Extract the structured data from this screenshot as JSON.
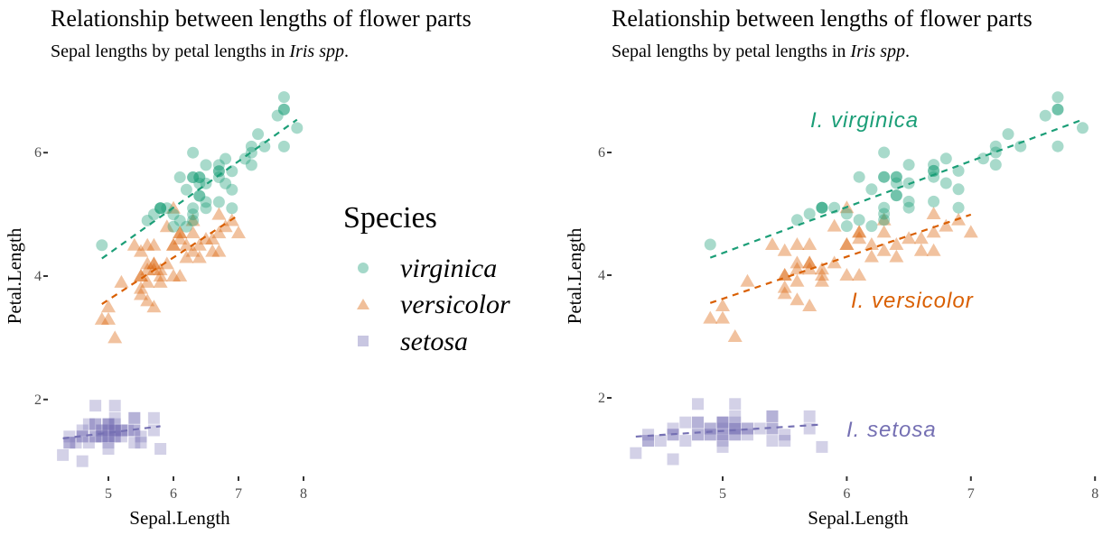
{
  "panels": [
    {
      "title": "Relationship between lengths of flower parts",
      "subtitle_plain": "Sepal lengths by petal lengths in ",
      "subtitle_italic": "Iris spp",
      "subtitle_end": "."
    },
    {
      "title": "Relationship between lengths of flower parts",
      "subtitle_plain": "Sepal lengths by petal lengths in ",
      "subtitle_italic": "Iris spp",
      "subtitle_end": "."
    }
  ],
  "legend": {
    "title": "Species",
    "entries": [
      "virginica",
      "versicolor",
      "setosa"
    ]
  },
  "direct_labels": {
    "virginica": "I. virginica",
    "versicolor": "I. versicolor",
    "setosa": "I. setosa"
  },
  "colors": {
    "virginica": "#1B9E77",
    "versicolor": "#D95F02",
    "setosa": "#7570B3"
  },
  "chart_data": [
    {
      "type": "scatter",
      "title": "Relationship between lengths of flower parts",
      "subtitle": "Sepal lengths by petal lengths in Iris spp.",
      "xlabel": "Sepal.Length",
      "ylabel": "Petal.Length",
      "xticks": [
        5,
        6,
        7,
        8
      ],
      "yticks": [
        2,
        4,
        6
      ],
      "xlim": [
        4.2,
        8.0
      ],
      "ylim": [
        0.9,
        7.0
      ],
      "grid": false,
      "legend": "right",
      "trendlines": "linear, dashed, per species",
      "series": "see shared_series"
    },
    {
      "type": "scatter",
      "title": "Relationship between lengths of flower parts",
      "subtitle": "Sepal lengths by petal lengths in Iris spp.",
      "xlabel": "Sepal.Length",
      "ylabel": "Petal.Length",
      "xticks": [
        5,
        6,
        7,
        8
      ],
      "yticks": [
        2,
        4,
        6
      ],
      "xlim": [
        4.2,
        8.0
      ],
      "ylim": [
        0.9,
        7.0
      ],
      "grid": false,
      "legend": "none (direct labels)",
      "annotations": [
        "I. virginica",
        "I. versicolor",
        "I. setosa"
      ],
      "trendlines": "linear, dashed, per species",
      "series": "see shared_series"
    }
  ],
  "shared_series": [
    {
      "name": "setosa",
      "marker": "square",
      "x": [
        5.1,
        4.9,
        4.7,
        4.6,
        5.0,
        5.4,
        4.6,
        5.0,
        4.4,
        4.9,
        5.4,
        4.8,
        4.8,
        4.3,
        5.8,
        5.7,
        5.4,
        5.1,
        5.7,
        5.1,
        5.4,
        5.1,
        4.6,
        5.1,
        4.8,
        5.0,
        5.0,
        5.2,
        5.2,
        4.7,
        4.8,
        5.4,
        5.2,
        5.5,
        4.9,
        5.0,
        5.5,
        4.9,
        4.4,
        5.1,
        5.0,
        4.5,
        4.4,
        5.0,
        5.1,
        4.8,
        5.1,
        4.6,
        5.3,
        5.0
      ],
      "y": [
        1.4,
        1.4,
        1.3,
        1.5,
        1.4,
        1.7,
        1.4,
        1.5,
        1.4,
        1.5,
        1.5,
        1.6,
        1.4,
        1.1,
        1.2,
        1.5,
        1.3,
        1.4,
        1.7,
        1.5,
        1.7,
        1.5,
        1.0,
        1.7,
        1.9,
        1.6,
        1.6,
        1.5,
        1.4,
        1.6,
        1.6,
        1.5,
        1.5,
        1.4,
        1.5,
        1.2,
        1.3,
        1.4,
        1.3,
        1.5,
        1.3,
        1.3,
        1.3,
        1.6,
        1.9,
        1.4,
        1.6,
        1.4,
        1.5,
        1.4
      ],
      "fit": {
        "intercept": 0.803,
        "slope": 0.1316
      }
    },
    {
      "name": "versicolor",
      "marker": "triangle",
      "x": [
        7.0,
        6.4,
        6.9,
        5.5,
        6.5,
        5.7,
        6.3,
        4.9,
        6.6,
        5.2,
        5.0,
        5.9,
        6.0,
        6.1,
        5.6,
        6.7,
        5.6,
        5.8,
        6.2,
        5.6,
        5.9,
        6.1,
        6.3,
        6.1,
        6.4,
        6.6,
        6.8,
        6.7,
        6.0,
        5.7,
        5.5,
        5.5,
        5.8,
        6.0,
        5.4,
        6.0,
        6.7,
        6.3,
        5.6,
        5.5,
        5.5,
        6.1,
        5.8,
        5.0,
        5.6,
        5.7,
        5.7,
        6.2,
        5.1,
        5.7
      ],
      "y": [
        4.7,
        4.5,
        4.9,
        4.0,
        4.6,
        4.5,
        4.7,
        3.3,
        4.6,
        3.9,
        3.5,
        4.2,
        4.0,
        4.7,
        3.6,
        4.4,
        4.5,
        4.1,
        4.5,
        3.9,
        4.8,
        4.0,
        4.9,
        4.7,
        4.3,
        4.4,
        4.8,
        5.0,
        4.5,
        3.5,
        3.8,
        3.7,
        3.9,
        5.1,
        4.5,
        4.5,
        4.7,
        4.4,
        4.1,
        4.0,
        4.4,
        4.6,
        4.0,
        3.3,
        4.2,
        4.2,
        4.2,
        4.3,
        3.0,
        4.1
      ],
      "fit": {
        "intercept": 0.185,
        "slope": 0.686
      }
    },
    {
      "name": "virginica",
      "marker": "circle",
      "x": [
        6.3,
        5.8,
        7.1,
        6.3,
        6.5,
        7.6,
        4.9,
        7.3,
        6.7,
        7.2,
        6.5,
        6.4,
        6.8,
        5.7,
        5.8,
        6.4,
        6.5,
        7.7,
        7.7,
        6.0,
        6.9,
        5.6,
        7.7,
        6.3,
        6.7,
        7.2,
        6.2,
        6.1,
        6.4,
        7.2,
        7.4,
        7.9,
        6.4,
        6.3,
        6.1,
        7.7,
        6.3,
        6.4,
        6.0,
        6.9,
        6.7,
        6.9,
        5.8,
        6.8,
        6.7,
        6.7,
        6.3,
        6.5,
        6.2,
        5.9
      ],
      "y": [
        6.0,
        5.1,
        5.9,
        5.6,
        5.8,
        6.6,
        4.5,
        6.3,
        5.8,
        6.1,
        5.1,
        5.3,
        5.5,
        5.0,
        5.1,
        5.3,
        5.5,
        6.7,
        6.9,
        5.0,
        5.7,
        4.9,
        6.7,
        4.9,
        5.7,
        6.0,
        4.8,
        4.9,
        5.6,
        5.8,
        6.1,
        6.4,
        5.6,
        5.1,
        5.6,
        6.1,
        5.6,
        5.5,
        4.8,
        5.4,
        5.6,
        5.1,
        5.1,
        5.9,
        5.7,
        5.2,
        5.0,
        5.2,
        5.4,
        5.1
      ],
      "fit": {
        "intercept": 0.61,
        "slope": 0.75
      }
    }
  ],
  "axis": {
    "xlabel": "Sepal.Length",
    "ylabel": "Petal.Length",
    "xticks": [
      "5",
      "6",
      "7",
      "8"
    ],
    "yticks": [
      "6",
      "4",
      "2"
    ]
  }
}
